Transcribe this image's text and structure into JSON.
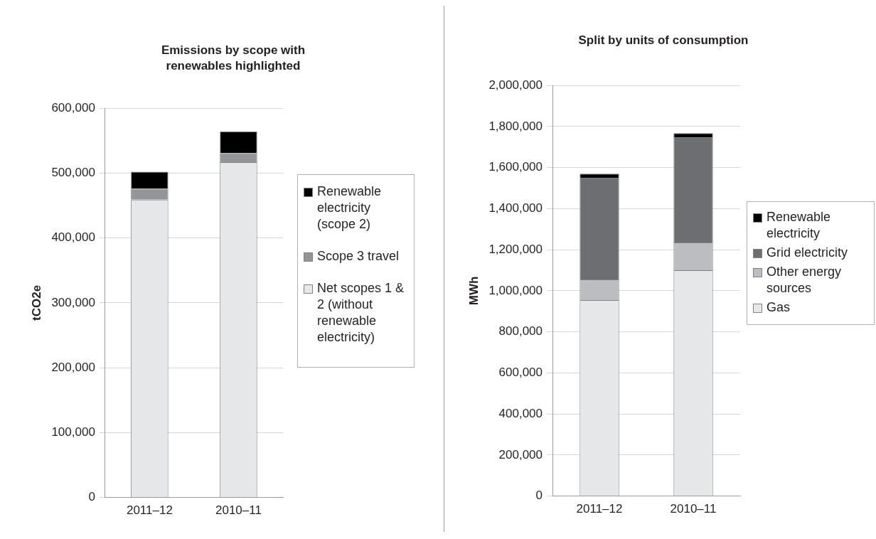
{
  "chart_data": [
    {
      "type": "bar",
      "title": "Emissions by scope with renewables highlighted",
      "ylabel": "tCO2e",
      "categories": [
        "2011–12",
        "2010–11"
      ],
      "stacked": true,
      "grid": "y",
      "legend": "right",
      "ylim": [
        0,
        600000
      ],
      "yticks": [
        {
          "value": 0,
          "label": "0"
        },
        {
          "value": 100000,
          "label": "100,000"
        },
        {
          "value": 200000,
          "label": "200,000"
        },
        {
          "value": 300000,
          "label": "300,000"
        },
        {
          "value": 400000,
          "label": "400,000"
        },
        {
          "value": 500000,
          "label": "500,000"
        },
        {
          "value": 600000,
          "label": "600,000"
        }
      ],
      "series": [
        {
          "name": "Net scopes 1 & 2 (without renewable electricity)",
          "color": "#e6e7e9",
          "values": [
            459000,
            517000
          ]
        },
        {
          "name": "Scope 3 travel",
          "color": "#939598",
          "values": [
            17000,
            14000
          ]
        },
        {
          "name": "Renewable electricity (scope 2)",
          "color": "#000000",
          "values": [
            26000,
            33000
          ]
        }
      ]
    },
    {
      "type": "bar",
      "title": "Split by units of consumption",
      "ylabel": "MWh",
      "categories": [
        "2011–12",
        "2010–11"
      ],
      "stacked": true,
      "grid": "y",
      "legend": "right",
      "ylim": [
        0,
        2000000
      ],
      "yticks": [
        {
          "value": 0,
          "label": "0"
        },
        {
          "value": 200000,
          "label": "200,000"
        },
        {
          "value": 400000,
          "label": "400,000"
        },
        {
          "value": 600000,
          "label": "600,000"
        },
        {
          "value": 800000,
          "label": "800,000"
        },
        {
          "value": 1000000,
          "label": "1,000,000"
        },
        {
          "value": 1200000,
          "label": "1,200,000"
        },
        {
          "value": 1400000,
          "label": "1,400,000"
        },
        {
          "value": 1600000,
          "label": "1,600,000"
        },
        {
          "value": 1800000,
          "label": "1,800,000"
        },
        {
          "value": 2000000,
          "label": "2,000,000"
        }
      ],
      "series": [
        {
          "name": "Gas",
          "color": "#e6e7e9",
          "values": [
            955000,
            1100000
          ]
        },
        {
          "name": "Other energy sources",
          "color": "#bcbdc0",
          "values": [
            100000,
            135000
          ]
        },
        {
          "name": "Grid electricity",
          "color": "#6d6e71",
          "values": [
            495000,
            513000
          ]
        },
        {
          "name": "Renewable electricity",
          "color": "#000000",
          "values": [
            20000,
            20000
          ]
        }
      ]
    }
  ]
}
